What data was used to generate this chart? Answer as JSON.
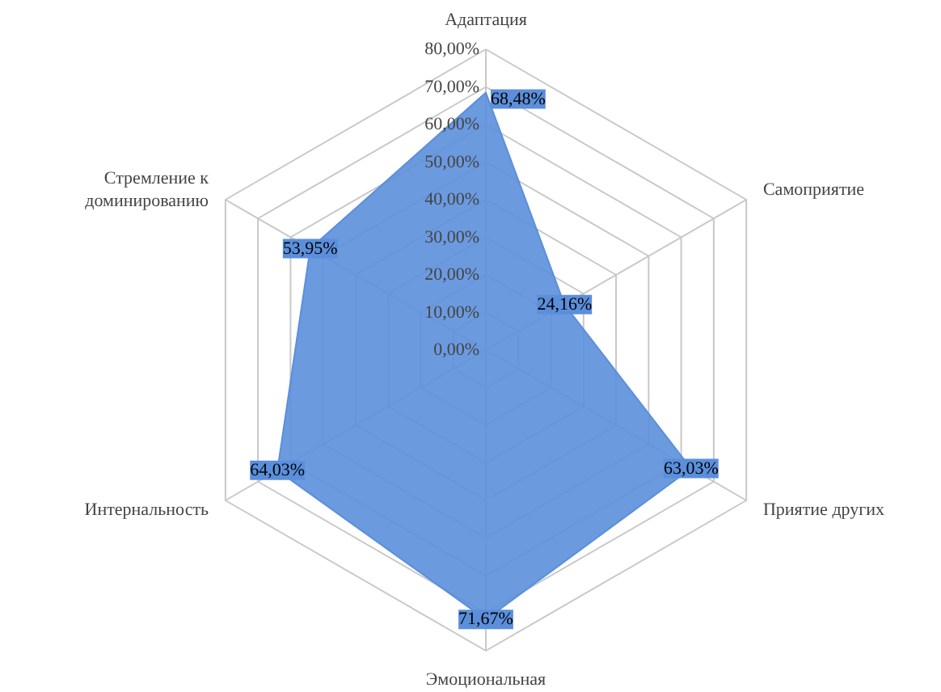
{
  "chart_data": {
    "type": "radar",
    "categories": [
      "Адаптация",
      "Самоприятие",
      "Приятие других",
      "Эмоциональная",
      "Интернальность",
      "Стремление к\nдоминированию"
    ],
    "series": [
      {
        "color": "#5b8fdc",
        "values": [
          68.48,
          24.16,
          63.03,
          71.67,
          64.03,
          53.95
        ],
        "value_labels": [
          "68,48%",
          "24,16%",
          "63,03%",
          "71,67%",
          "64,03%",
          "53,95%"
        ]
      }
    ],
    "ylim": [
      0,
      80
    ],
    "yticks": [
      {
        "value": 0,
        "label": "0,00%"
      },
      {
        "value": 10,
        "label": "10,00%"
      },
      {
        "value": 20,
        "label": "20,00%"
      },
      {
        "value": 30,
        "label": "30,00%"
      },
      {
        "value": 40,
        "label": "40,00%"
      },
      {
        "value": 50,
        "label": "50,00%"
      },
      {
        "value": 60,
        "label": "60,00%"
      },
      {
        "value": 70,
        "label": "70,00%"
      },
      {
        "value": 80,
        "label": "80,00%"
      }
    ],
    "grid": true
  }
}
